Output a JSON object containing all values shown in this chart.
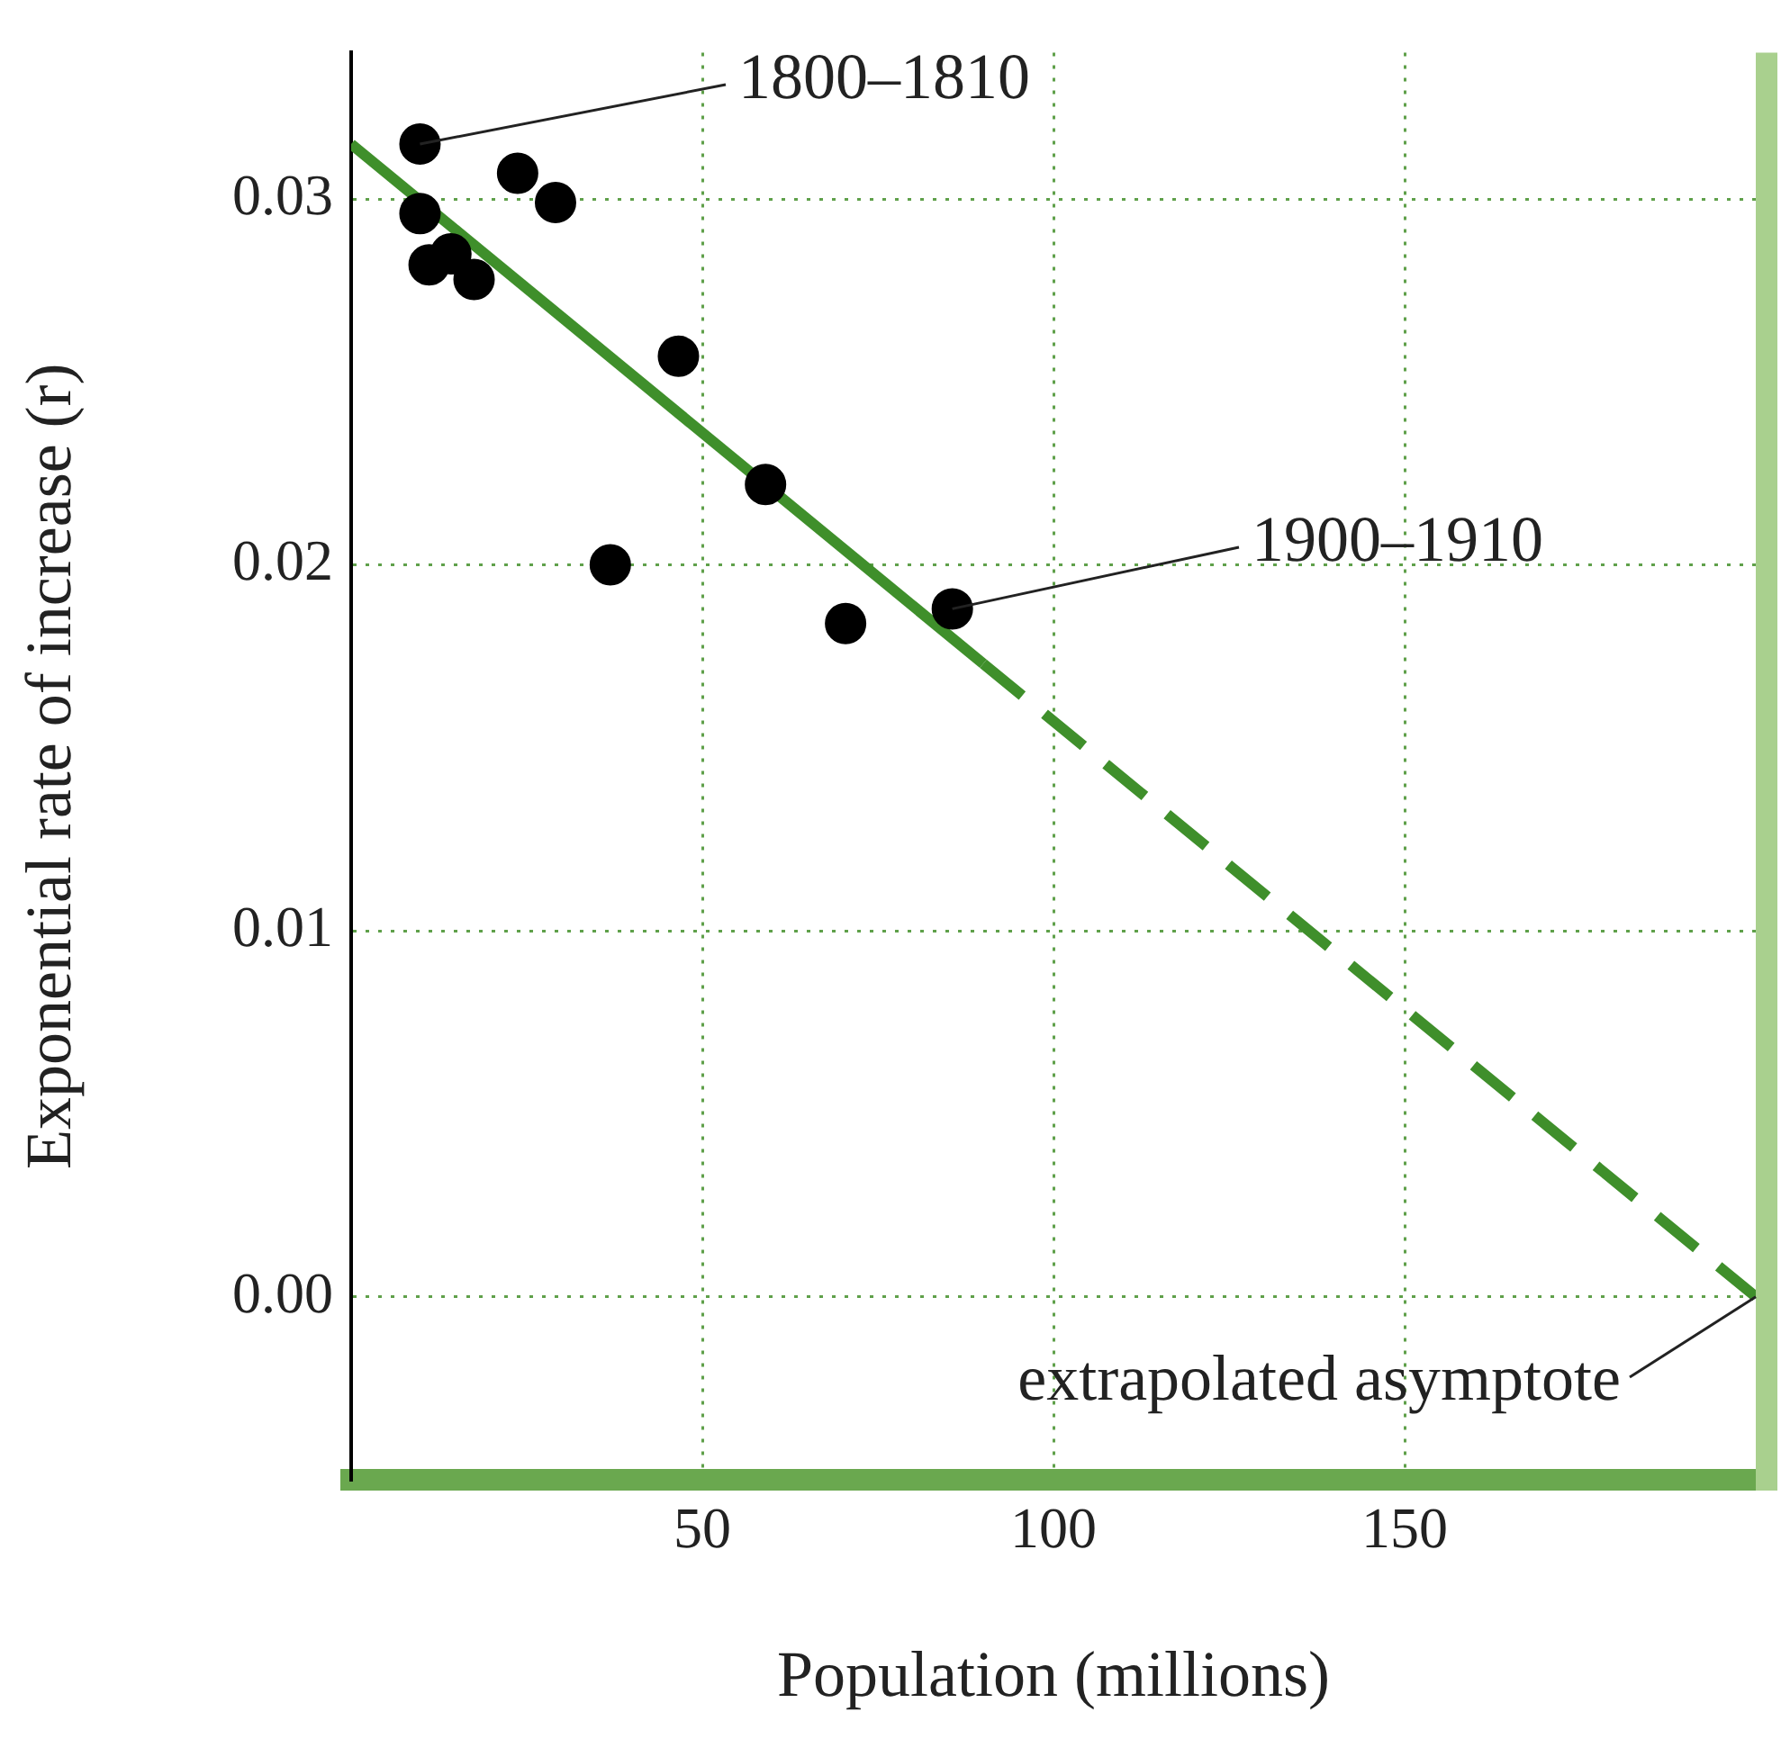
{
  "chart_data": {
    "type": "scatter",
    "xlabel": "Population (millions)",
    "ylabel": "Exponential rate of increase (r)",
    "xlim": [
      0,
      200
    ],
    "xticks": [
      50,
      100,
      150
    ],
    "ylim": [
      -0.005,
      0.034
    ],
    "yticks": [
      {
        "value": 0,
        "label": "0.00"
      },
      0.01,
      0.02,
      0.03
    ],
    "grid": true,
    "series": [
      {
        "marker": "circle",
        "color": "#000000",
        "x": [
          9.8,
          9.8,
          11.1,
          14.2,
          17.5,
          23.7,
          29.1,
          36.9,
          46.6,
          59.0,
          70.4,
          85.6
        ],
        "values": [
          0.0315,
          0.0296,
          0.0282,
          0.0285,
          0.0278,
          0.0307,
          0.0299,
          0.02,
          0.0257,
          0.0222,
          0.0184,
          0.0188
        ]
      },
      {
        "type": "line",
        "color": "#3f8f2b",
        "line_style": "solid",
        "x": [
          0,
          90
        ],
        "values": [
          0.0315,
          0.0173
        ]
      },
      {
        "type": "line",
        "color": "#3f8f2b",
        "line_style": "dashed",
        "x": [
          90,
          200
        ],
        "values": [
          0.0173,
          0
        ]
      }
    ],
    "annotations": [
      {
        "text": "1800–1810",
        "x": 9.8,
        "y": 0.0315
      },
      {
        "text": "1900–1910",
        "x": 85.6,
        "y": 0.0188
      },
      {
        "text": "extrapolated asymptote",
        "x": 200,
        "y": 0
      }
    ]
  }
}
